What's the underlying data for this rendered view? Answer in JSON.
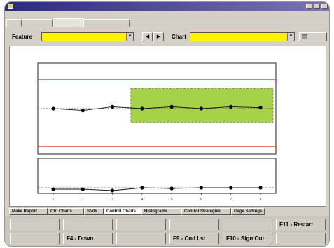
{
  "window": {
    "title": ""
  },
  "menu": {
    "items": [
      "",
      "",
      "",
      "",
      "",
      "",
      ""
    ]
  },
  "tabs": [
    {
      "label": ""
    },
    {
      "label": ""
    },
    {
      "label": ""
    },
    {
      "label": ""
    }
  ],
  "selection": {
    "feature_label": "Feature",
    "feature_value": "",
    "chart_label": "Chart",
    "chart_value": "",
    "print_label": ""
  },
  "chart_data": {
    "type": "line",
    "title": "",
    "xlabel": "",
    "upper_ylabel": "",
    "lower_ylabel": "",
    "x": [
      1,
      2,
      3,
      4,
      5,
      6,
      7,
      8
    ],
    "tick_labels": [
      "1",
      "2",
      "3",
      "4",
      "5",
      "6",
      "7",
      "8"
    ],
    "upper_ylim": [
      0,
      1
    ],
    "lower_ylim": [
      0,
      1
    ],
    "series": [
      {
        "values": [
          0.5,
          0.48,
          0.52,
          0.5,
          0.52,
          0.5,
          0.52,
          0.51
        ]
      },
      {
        "values": [
          0.12,
          0.12,
          0.08,
          0.16,
          0.14,
          0.16,
          0.16,
          0.16
        ]
      }
    ],
    "reference_lines": {
      "upper": [
        {
          "value": 0.82,
          "label": "",
          "color": "#e05030"
        },
        {
          "value": 0.5,
          "label": "",
          "color": "#444444"
        },
        {
          "value": 0.08,
          "label": "",
          "color": "#e05030"
        }
      ],
      "lower": [
        {
          "value": 0.16,
          "label": "",
          "color": "#e05030"
        }
      ]
    },
    "upper_band_labels": [
      "",
      ""
    ],
    "green_band": {
      "x_from": 4,
      "x_to": 8,
      "y_from": 0.35,
      "y_to": 0.72,
      "color": "#a6d24a"
    }
  },
  "bottom_tabs": [
    {
      "label": "Make Report"
    },
    {
      "label": "Ctrl Charts"
    },
    {
      "label": "Stats"
    },
    {
      "label": "Control Charts"
    },
    {
      "label": "Histograms"
    },
    {
      "label": "Control Strategies"
    },
    {
      "label": "Gage Settings"
    }
  ],
  "function_keys": [
    {
      "label": "",
      "enabled": false
    },
    {
      "label": "",
      "enabled": false
    },
    {
      "label": "",
      "enabled": false
    },
    {
      "label": "",
      "enabled": false
    },
    {
      "label": "",
      "enabled": false
    },
    {
      "label": "F11 - Restart",
      "enabled": true
    },
    {
      "label": "",
      "enabled": false
    },
    {
      "label": "F4 - Down",
      "enabled": true
    },
    {
      "label": "",
      "enabled": false
    },
    {
      "label": "F9 - Cnd Lst",
      "enabled": true
    },
    {
      "label": "F10 - Sign Out",
      "enabled": true
    },
    {
      "label": "",
      "enabled": false
    }
  ],
  "colors": {
    "accent_yellow": "#fff200",
    "control_limit": "#e05030",
    "green_band": "#a6d24a",
    "titlebar": "#2a2a7e"
  }
}
